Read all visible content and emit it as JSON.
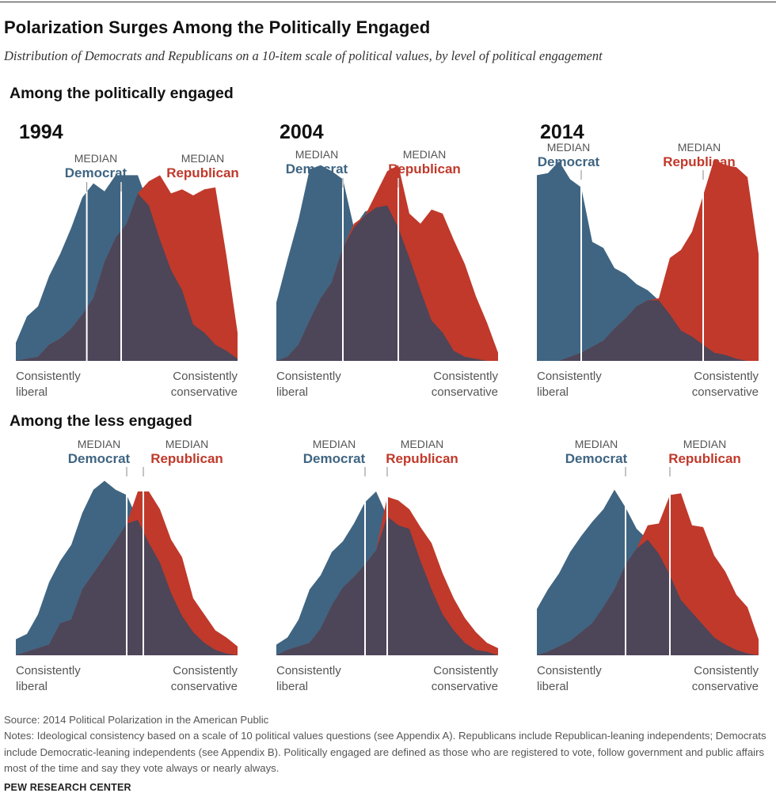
{
  "title": "Polarization Surges Among the Politically Engaged",
  "subtitle": "Distribution of Democrats and Republicans on a 10-item scale of political values, by level of political engagement",
  "sections": [
    "Among the politically engaged",
    "Among the less engaged"
  ],
  "labels": {
    "median": "MEDIAN",
    "democrat": "Democrat",
    "republican": "Republican",
    "left_line1": "Consistently",
    "left_line2": "liberal",
    "right_line1": "Consistently",
    "right_line2": "conservative"
  },
  "colors": {
    "democrat": "#3f6582",
    "republican": "#c0392b",
    "overlap": "#4d4558",
    "median_line": "#ffffff",
    "year_text": "#111111"
  },
  "chart_data": [
    {
      "type": "area",
      "group": "Among the politically engaged",
      "year": "1994",
      "x": [
        0,
        1,
        2,
        3,
        4,
        5,
        6,
        7,
        8,
        9,
        10,
        11,
        12,
        13,
        14,
        15,
        16,
        17,
        18,
        19,
        20
      ],
      "series": [
        {
          "name": "Democrat",
          "values": [
            0.09,
            0.22,
            0.27,
            0.42,
            0.53,
            0.66,
            0.81,
            0.88,
            0.84,
            0.92,
            0.92,
            0.92,
            0.77,
            0.6,
            0.45,
            0.35,
            0.18,
            0.14,
            0.08,
            0.05,
            0.01
          ]
        },
        {
          "name": "Republican",
          "values": [
            0.0,
            0.01,
            0.02,
            0.08,
            0.11,
            0.16,
            0.23,
            0.31,
            0.49,
            0.61,
            0.68,
            0.83,
            0.89,
            0.92,
            0.83,
            0.85,
            0.82,
            0.85,
            0.86,
            0.52,
            0.14
          ]
        }
      ],
      "median_democrat": 6.4,
      "median_republican": 9.5,
      "ylim": [
        0,
        1
      ]
    },
    {
      "type": "area",
      "group": "Among the politically engaged",
      "year": "2004",
      "x": [
        0,
        1,
        2,
        3,
        4,
        5,
        6,
        7,
        8,
        9,
        10,
        11,
        12,
        13,
        14,
        15,
        16,
        17,
        18,
        19,
        20
      ],
      "series": [
        {
          "name": "Democrat",
          "values": [
            0.29,
            0.5,
            0.7,
            0.95,
            0.97,
            0.94,
            0.9,
            0.66,
            0.74,
            0.76,
            0.77,
            0.66,
            0.51,
            0.35,
            0.2,
            0.14,
            0.05,
            0.02,
            0.01,
            0.0,
            0.0
          ]
        },
        {
          "name": "Republican",
          "values": [
            0.0,
            0.02,
            0.08,
            0.2,
            0.31,
            0.39,
            0.56,
            0.68,
            0.72,
            0.83,
            0.94,
            0.97,
            0.73,
            0.68,
            0.75,
            0.73,
            0.6,
            0.48,
            0.32,
            0.19,
            0.04
          ]
        }
      ],
      "median_democrat": 6.0,
      "median_republican": 11.0,
      "ylim": [
        0,
        1
      ]
    },
    {
      "type": "area",
      "group": "Among the politically engaged",
      "year": "2014",
      "x": [
        0,
        1,
        2,
        3,
        4,
        5,
        6,
        7,
        8,
        9,
        10,
        11,
        12,
        13,
        14,
        15,
        16,
        17,
        18,
        19,
        20
      ],
      "series": [
        {
          "name": "Democrat",
          "values": [
            0.92,
            0.93,
            0.99,
            0.9,
            0.86,
            0.59,
            0.56,
            0.46,
            0.43,
            0.38,
            0.35,
            0.3,
            0.23,
            0.15,
            0.12,
            0.08,
            0.04,
            0.03,
            0.01,
            0.0,
            0.0
          ]
        },
        {
          "name": "Republican",
          "values": [
            0.0,
            0.0,
            0.0,
            0.02,
            0.04,
            0.07,
            0.1,
            0.16,
            0.21,
            0.27,
            0.3,
            0.31,
            0.51,
            0.55,
            0.64,
            0.82,
            1.0,
            0.97,
            0.96,
            0.91,
            0.53
          ]
        }
      ],
      "median_democrat": 4.0,
      "median_republican": 15.0,
      "ylim": [
        0,
        1
      ]
    },
    {
      "type": "area",
      "group": "Among the less engaged",
      "year": "",
      "x": [
        0,
        1,
        2,
        3,
        4,
        5,
        6,
        7,
        8,
        9,
        10,
        11,
        12,
        13,
        14,
        15,
        16,
        17,
        18,
        19,
        20
      ],
      "series": [
        {
          "name": "Democrat",
          "values": [
            0.09,
            0.12,
            0.23,
            0.41,
            0.53,
            0.62,
            0.8,
            0.93,
            0.98,
            0.93,
            0.9,
            0.76,
            0.63,
            0.52,
            0.35,
            0.22,
            0.13,
            0.07,
            0.03,
            0.01,
            0.0
          ]
        },
        {
          "name": "Republican",
          "values": [
            0.0,
            0.02,
            0.04,
            0.06,
            0.18,
            0.2,
            0.37,
            0.46,
            0.55,
            0.64,
            0.74,
            0.92,
            0.92,
            0.82,
            0.65,
            0.55,
            0.32,
            0.23,
            0.14,
            0.1,
            0.05
          ]
        }
      ],
      "median_democrat": 10.0,
      "median_republican": 11.5,
      "ylim": [
        0,
        1
      ]
    },
    {
      "type": "area",
      "group": "Among the less engaged",
      "year": "",
      "x": [
        0,
        1,
        2,
        3,
        4,
        5,
        6,
        7,
        8,
        9,
        10,
        11,
        12,
        13,
        14,
        15,
        16,
        17,
        18,
        19,
        20
      ],
      "series": [
        {
          "name": "Democrat",
          "values": [
            0.06,
            0.1,
            0.2,
            0.37,
            0.45,
            0.58,
            0.64,
            0.74,
            0.86,
            0.92,
            0.78,
            0.73,
            0.71,
            0.53,
            0.37,
            0.23,
            0.14,
            0.07,
            0.03,
            0.02,
            0.0
          ]
        },
        {
          "name": "Republican",
          "values": [
            0.0,
            0.03,
            0.05,
            0.07,
            0.15,
            0.28,
            0.38,
            0.44,
            0.51,
            0.59,
            0.89,
            0.87,
            0.82,
            0.72,
            0.63,
            0.46,
            0.32,
            0.21,
            0.13,
            0.07,
            0.04
          ]
        }
      ],
      "median_democrat": 8.0,
      "median_republican": 10.0,
      "ylim": [
        0,
        1
      ]
    },
    {
      "type": "area",
      "group": "Among the less engaged",
      "year": "",
      "x": [
        0,
        1,
        2,
        3,
        4,
        5,
        6,
        7,
        8,
        9,
        10,
        11,
        12,
        13,
        14,
        15,
        16,
        17,
        18,
        19,
        20
      ],
      "series": [
        {
          "name": "Democrat",
          "values": [
            0.26,
            0.37,
            0.46,
            0.58,
            0.67,
            0.75,
            0.82,
            0.93,
            0.83,
            0.71,
            0.65,
            0.57,
            0.45,
            0.31,
            0.24,
            0.17,
            0.1,
            0.06,
            0.03,
            0.01,
            0.0
          ]
        },
        {
          "name": "Republican",
          "values": [
            0.0,
            0.02,
            0.05,
            0.08,
            0.13,
            0.18,
            0.27,
            0.37,
            0.51,
            0.6,
            0.73,
            0.74,
            0.9,
            0.91,
            0.73,
            0.72,
            0.56,
            0.47,
            0.34,
            0.27,
            0.09
          ]
        }
      ],
      "median_democrat": 8.0,
      "median_republican": 12.0,
      "ylim": [
        0,
        1
      ]
    }
  ],
  "footer": {
    "source": "Source: 2014 Political Polarization in the American Public",
    "notes": "Notes: Ideological consistency based on a scale of 10 political values questions (see Appendix A). Republicans include Republican-leaning independents; Democrats include Democratic-leaning independents (see Appendix B). Politically engaged are defined as those who are registered to vote, follow government and public affairs most of the time and say they vote always or nearly always.",
    "brand": "PEW RESEARCH CENTER"
  }
}
